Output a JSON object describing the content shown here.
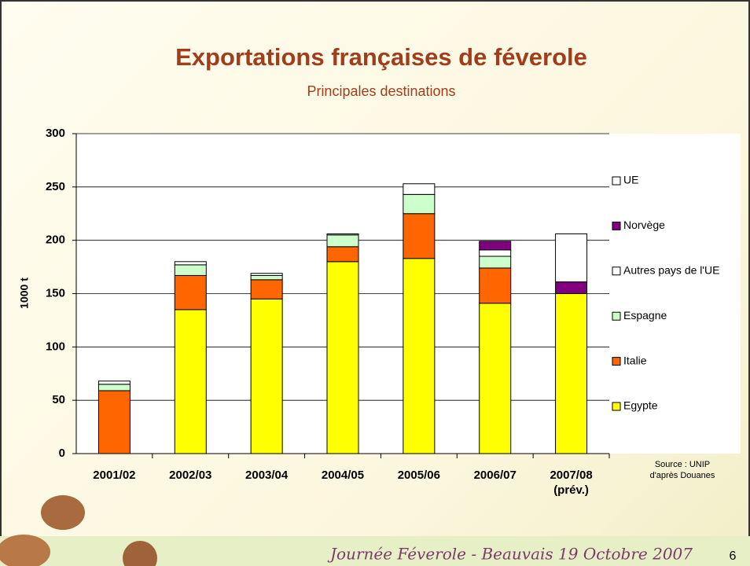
{
  "chart_data": {
    "type": "stacked_bar",
    "title": "Exportations françaises de féverole",
    "subtitle": "Principales destinations",
    "y_label": "1000 t",
    "categories": [
      "2001/02",
      "2002/03",
      "2003/04",
      "2004/05",
      "2005/06",
      "2006/07",
      "2007/08 (prév.)"
    ],
    "series": [
      {
        "name": "Egypte",
        "color": "#ffff00",
        "values": [
          null,
          135,
          145,
          180,
          183,
          141,
          150
        ]
      },
      {
        "name": "Italie",
        "color": "#ff6600",
        "values": [
          59,
          32,
          18,
          14,
          42,
          33,
          null
        ]
      },
      {
        "name": "Espagne",
        "color": "#ccffcc",
        "values": [
          6,
          10,
          4,
          11,
          18,
          11,
          null
        ]
      },
      {
        "name": "Autres pays de l'UE",
        "color": "#ffffff",
        "values": [
          3,
          3,
          2,
          1,
          10,
          6,
          null
        ]
      },
      {
        "name": "Norvège",
        "color": "#800080",
        "values": [
          null,
          null,
          null,
          null,
          null,
          8,
          11
        ]
      },
      {
        "name": "UE",
        "color": "#ffffff",
        "values": [
          null,
          null,
          null,
          null,
          null,
          null,
          45
        ]
      }
    ],
    "ylim": [
      0,
      300
    ],
    "yticks": [
      0,
      50,
      100,
      150,
      200,
      250,
      300
    ],
    "grid": true,
    "legend_position": "right",
    "source": [
      "Source : UNIP",
      "d'après Douanes"
    ]
  },
  "footer": {
    "event": "Journée Féverole - Beauvais 19 Octobre 2007",
    "slide_number": 6
  }
}
